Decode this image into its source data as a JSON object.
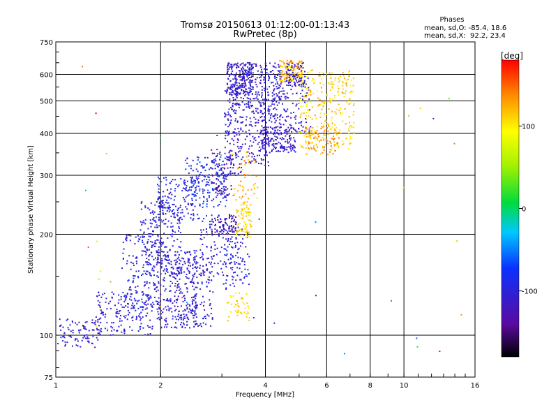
{
  "chart_data": {
    "type": "scatter",
    "title": "Tromsø 20150613 01:12:00-01:13:43",
    "subtitle": "RwPretec (8p)",
    "xlabel": "Frequency [MHz]",
    "ylabel": "Stationary phase Virtual Height [km]",
    "x_scale": "log",
    "y_scale": "log",
    "xlim": [
      1,
      16
    ],
    "ylim": [
      75,
      750
    ],
    "x_ticks": [
      1,
      2,
      4,
      6,
      8,
      10,
      16
    ],
    "x_tick_labels": [
      "1",
      "2",
      "4",
      "6",
      "8",
      "10",
      "16"
    ],
    "y_ticks": [
      75,
      100,
      200,
      300,
      400,
      500,
      600,
      750
    ],
    "y_tick_labels": [
      "75",
      "100",
      "200",
      "300",
      "400",
      "500",
      "600",
      "750"
    ],
    "grid": true,
    "info": {
      "heading": "Phases",
      "line1": "mean, sd,O: -85.4, 18.6",
      "line2": "mean, sd,X:  92.2, 23.4"
    },
    "colorbar": {
      "unit": "[deg]",
      "range": [
        -180,
        180
      ],
      "ticks": [
        100,
        0,
        -100
      ],
      "tick_labels": [
        "100",
        "0",
        "-100"
      ]
    },
    "clusters": [
      {
        "f": [
          1.0,
          1.35
        ],
        "h": [
          92,
          112
        ],
        "phase": [
          -130,
          -80
        ],
        "n": 90
      },
      {
        "f": [
          1.3,
          1.9
        ],
        "h": [
          100,
          135
        ],
        "phase": [
          -120,
          -85
        ],
        "n": 170
      },
      {
        "f": [
          1.55,
          2.0
        ],
        "h": [
          120,
          200
        ],
        "phase": [
          -120,
          -80
        ],
        "n": 160
      },
      {
        "f": [
          1.75,
          2.3
        ],
        "h": [
          150,
          250
        ],
        "phase": [
          -120,
          -80
        ],
        "n": 220
      },
      {
        "f": [
          1.95,
          2.55
        ],
        "h": [
          105,
          180
        ],
        "phase": [
          -125,
          -85
        ],
        "n": 230
      },
      {
        "f": [
          2.2,
          2.85
        ],
        "h": [
          105,
          170
        ],
        "phase": [
          -125,
          -85
        ],
        "n": 160
      },
      {
        "f": [
          1.95,
          2.6
        ],
        "h": [
          220,
          300
        ],
        "phase": [
          -115,
          -70
        ],
        "n": 140
      },
      {
        "f": [
          2.35,
          3.1
        ],
        "h": [
          240,
          340
        ],
        "phase": [
          -110,
          -55
        ],
        "n": 180
      },
      {
        "f": [
          2.6,
          3.3
        ],
        "h": [
          150,
          230
        ],
        "phase": [
          -125,
          -85
        ],
        "n": 120
      },
      {
        "f": [
          3.0,
          3.6
        ],
        "h": [
          135,
          210
        ],
        "phase": [
          -120,
          -80
        ],
        "n": 90
      },
      {
        "f": [
          2.8,
          3.3
        ],
        "h": [
          200,
          225
        ],
        "phase": [
          -150,
          -110
        ],
        "n": 55
      },
      {
        "f": [
          2.8,
          3.2
        ],
        "h": [
          260,
          360
        ],
        "phase": [
          -150,
          -110
        ],
        "n": 70
      },
      {
        "f": [
          3.05,
          3.45
        ],
        "h": [
          300,
          560
        ],
        "phase": [
          -125,
          -85
        ],
        "n": 170
      },
      {
        "f": [
          3.1,
          3.7
        ],
        "h": [
          520,
          650
        ],
        "phase": [
          -130,
          -90
        ],
        "n": 200
      },
      {
        "f": [
          3.45,
          4.45
        ],
        "h": [
          430,
          650
        ],
        "phase": [
          -125,
          -85
        ],
        "n": 260
      },
      {
        "f": [
          3.5,
          4.1
        ],
        "h": [
          320,
          430
        ],
        "phase": [
          -130,
          -95
        ],
        "n": 90
      },
      {
        "f": [
          3.9,
          4.9
        ],
        "h": [
          350,
          420
        ],
        "phase": [
          -130,
          -95
        ],
        "n": 160
      },
      {
        "f": [
          4.2,
          5.4
        ],
        "h": [
          400,
          600
        ],
        "phase": [
          -125,
          -90
        ],
        "n": 120
      },
      {
        "f": [
          3.3,
          3.65
        ],
        "h": [
          195,
          250
        ],
        "phase": [
          95,
          125
        ],
        "n": 80
      },
      {
        "f": [
          3.2,
          3.8
        ],
        "h": [
          250,
          360
        ],
        "phase": [
          100,
          150
        ],
        "n": 45
      },
      {
        "f": [
          3.1,
          3.6
        ],
        "h": [
          110,
          135
        ],
        "phase": [
          95,
          125
        ],
        "n": 45
      },
      {
        "f": [
          4.4,
          5.1
        ],
        "h": [
          570,
          660
        ],
        "phase": [
          95,
          150
        ],
        "n": 140
      },
      {
        "f": [
          5.0,
          7.2
        ],
        "h": [
          360,
          620
        ],
        "phase": [
          90,
          135
        ],
        "n": 260
      },
      {
        "f": [
          5.2,
          6.6
        ],
        "h": [
          345,
          420
        ],
        "phase": [
          100,
          150
        ],
        "n": 90
      },
      {
        "f": [
          4.6,
          5.2
        ],
        "h": [
          550,
          650
        ],
        "phase": [
          -120,
          -90
        ],
        "n": 70
      },
      {
        "f": [
          1.0,
          16.0
        ],
        "h": [
          80,
          700
        ],
        "phase": [
          -180,
          180
        ],
        "n": 40
      }
    ]
  }
}
